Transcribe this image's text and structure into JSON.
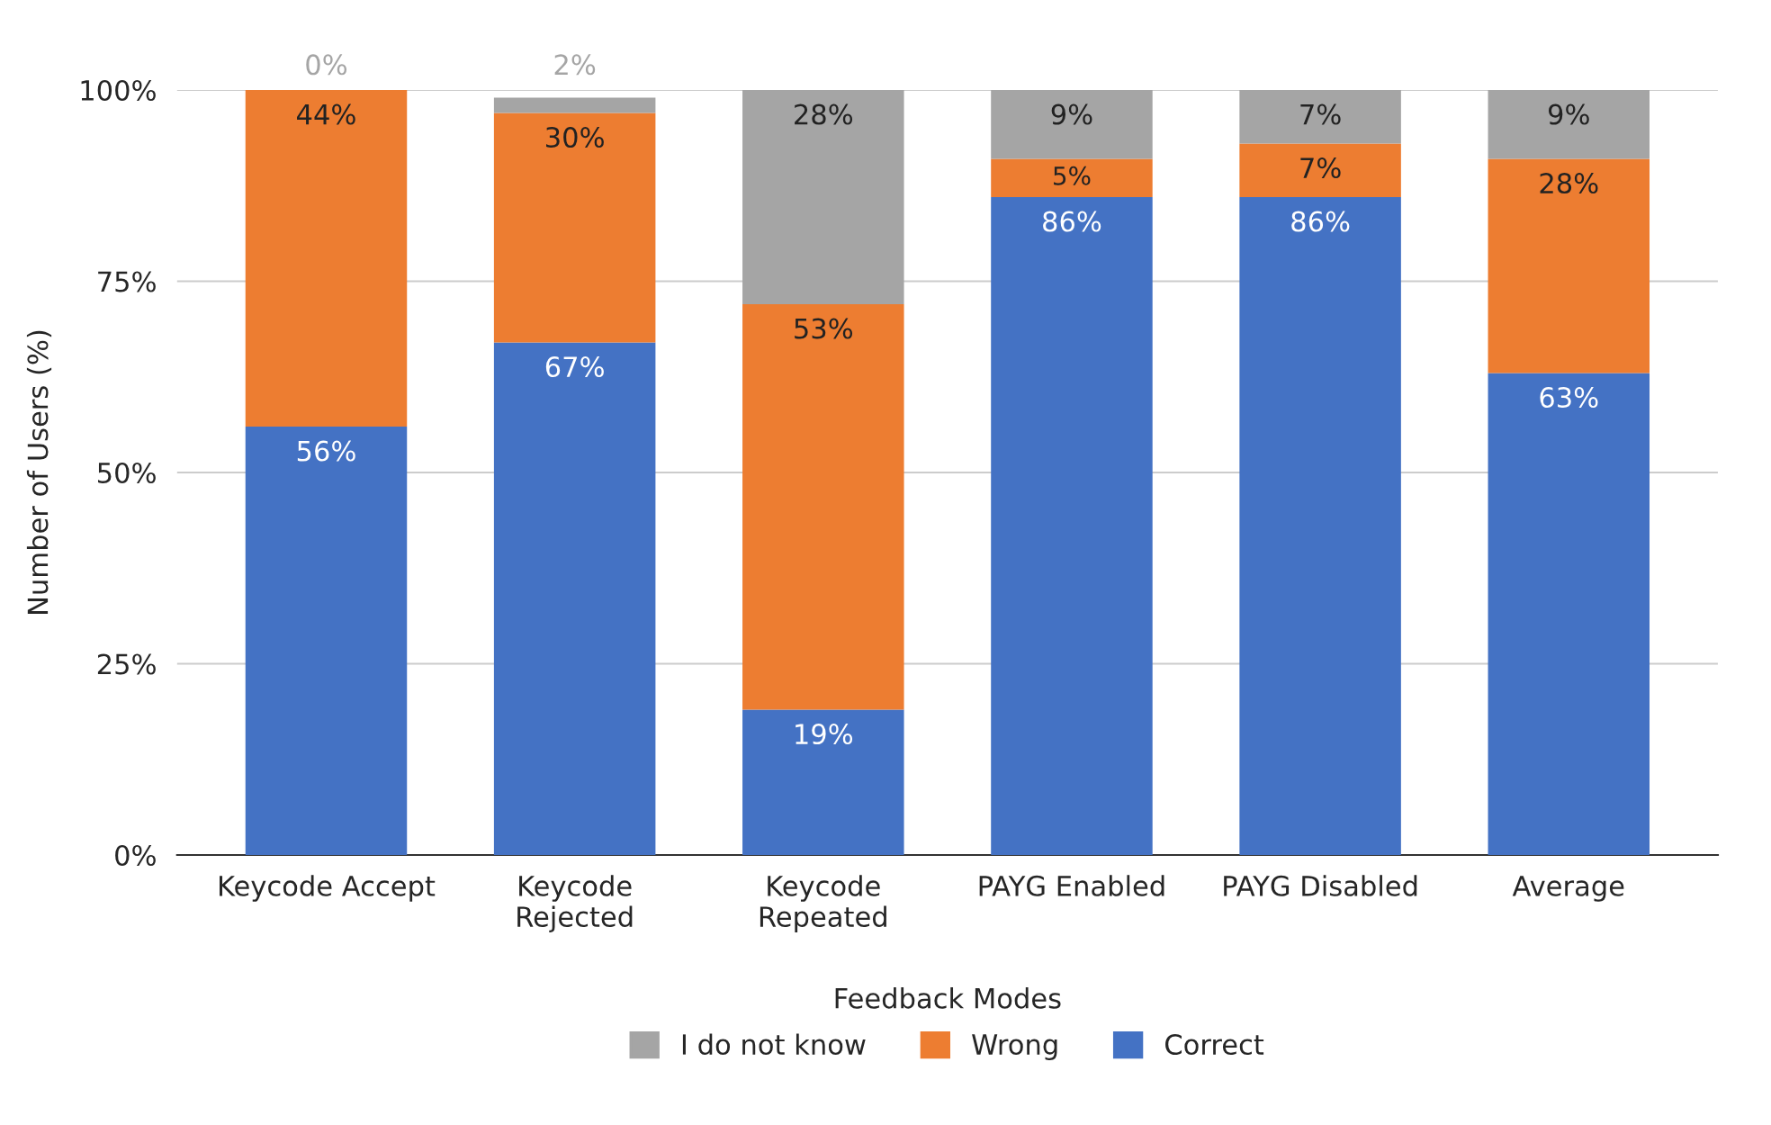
{
  "chart_data": {
    "type": "bar",
    "stacked": true,
    "xlabel": "Feedback Modes",
    "ylabel": "Number of Users (%)",
    "categories": [
      "Keycode Accept",
      "Keycode\nRejected",
      "Keycode\nRepeated",
      "PAYG Enabled",
      "PAYG Disabled",
      "Average"
    ],
    "series": [
      {
        "name": "Correct",
        "color": "#4472c4",
        "values": [
          56,
          67,
          19,
          86,
          86,
          63
        ],
        "value_labels": [
          "56%",
          "67%",
          "19%",
          "86%",
          "86%",
          "63%"
        ]
      },
      {
        "name": "Wrong",
        "color": "#ed7d31",
        "values": [
          44,
          30,
          53,
          5,
          7,
          28
        ],
        "value_labels": [
          "44%",
          "30%",
          "53%",
          "5%",
          "7%",
          "28%"
        ]
      },
      {
        "name": "I do not know",
        "color": "#a5a5a5",
        "values": [
          0,
          2,
          28,
          9,
          7,
          9
        ],
        "value_labels": [
          "0%",
          "2%",
          "28%",
          "9%",
          "7%",
          "9%"
        ]
      }
    ],
    "ylim": [
      0,
      100
    ],
    "yticks": [
      {
        "value": 0,
        "label": "0%"
      },
      {
        "value": 25,
        "label": "25%"
      },
      {
        "value": 50,
        "label": "50%"
      },
      {
        "value": 75,
        "label": "75%"
      },
      {
        "value": 100,
        "label": "100%"
      }
    ],
    "grid": "y",
    "legend": "bottom"
  }
}
